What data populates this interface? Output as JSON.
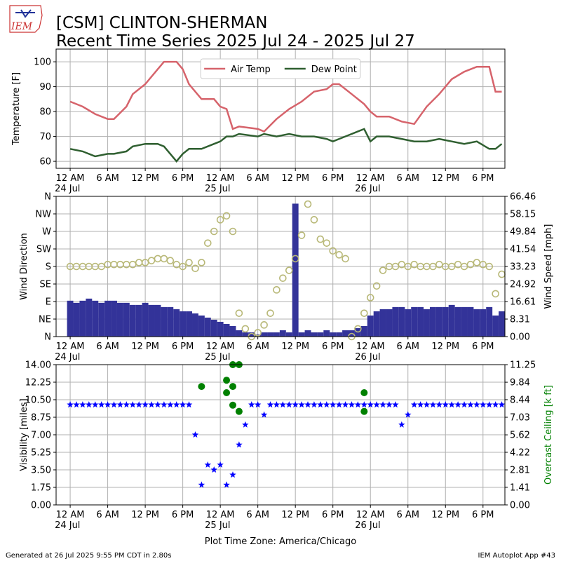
{
  "header": {
    "logo": "IEM",
    "title": "[CSM] CLINTON-SHERMAN",
    "subtitle": "Recent Time Series 2025 Jul 24 - 2025 Jul 27"
  },
  "footer": {
    "left": "Generated at 26 Jul 2025 9:55 PM CDT in 2.80s",
    "right": "IEM Autoplot App #43"
  },
  "chart_data": [
    {
      "type": "line",
      "ylabel": "Temperature [F]",
      "legend": "upper center",
      "grid": true,
      "xlim": [
        "2025-07-23 21:45",
        "2025-07-26 21:30"
      ],
      "xticks": [
        {
          "value": "2025-07-24 00:00",
          "label": "12 AM\n24 Jul"
        },
        {
          "value": "2025-07-24 06:00",
          "label": "6 AM"
        },
        {
          "value": "2025-07-24 12:00",
          "label": "12 PM"
        },
        {
          "value": "2025-07-24 18:00",
          "label": "6 PM"
        },
        {
          "value": "2025-07-25 00:00",
          "label": "12 AM\n25 Jul"
        },
        {
          "value": "2025-07-25 06:00",
          "label": "6 AM"
        },
        {
          "value": "2025-07-25 12:00",
          "label": "12 PM"
        },
        {
          "value": "2025-07-25 18:00",
          "label": "6 PM"
        },
        {
          "value": "2025-07-26 00:00",
          "label": "12 AM\n26 Jul"
        },
        {
          "value": "2025-07-26 06:00",
          "label": "6 AM"
        },
        {
          "value": "2025-07-26 12:00",
          "label": "12 PM"
        },
        {
          "value": "2025-07-26 18:00",
          "label": "6 PM"
        }
      ],
      "ylim": [
        57.2,
        105.1
      ],
      "yticks": [
        60,
        70,
        80,
        90,
        100
      ],
      "x": [
        "2025-07-24 00:00",
        "2025-07-24 02:00",
        "2025-07-24 04:00",
        "2025-07-24 06:00",
        "2025-07-24 07:00",
        "2025-07-24 09:00",
        "2025-07-24 10:00",
        "2025-07-24 12:00",
        "2025-07-24 14:00",
        "2025-07-24 15:00",
        "2025-07-24 17:00",
        "2025-07-24 18:00",
        "2025-07-24 19:00",
        "2025-07-24 21:00",
        "2025-07-24 23:00",
        "2025-07-25 00:00",
        "2025-07-25 01:00",
        "2025-07-25 02:00",
        "2025-07-25 03:00",
        "2025-07-25 06:00",
        "2025-07-25 07:00",
        "2025-07-25 09:00",
        "2025-07-25 11:00",
        "2025-07-25 13:00",
        "2025-07-25 15:00",
        "2025-07-25 17:00",
        "2025-07-25 18:00",
        "2025-07-25 19:00",
        "2025-07-25 21:00",
        "2025-07-25 23:00",
        "2025-07-26 00:00",
        "2025-07-26 01:00",
        "2025-07-26 03:00",
        "2025-07-26 05:00",
        "2025-07-26 07:00",
        "2025-07-26 09:00",
        "2025-07-26 11:00",
        "2025-07-26 13:00",
        "2025-07-26 15:00",
        "2025-07-26 17:00",
        "2025-07-26 19:00",
        "2025-07-26 20:00",
        "2025-07-26 21:00"
      ],
      "series": [
        {
          "name": "Air Temp",
          "color": "#d6636b",
          "mark": "line",
          "values": [
            84,
            82,
            79,
            77,
            77,
            82,
            87,
            91,
            97,
            100,
            100,
            97,
            91,
            85,
            85,
            82,
            81,
            73,
            74,
            73,
            72,
            77,
            81,
            84,
            88,
            89,
            91,
            91,
            87,
            83,
            80,
            78,
            78,
            76,
            75,
            82,
            87,
            93,
            96,
            98,
            98,
            88,
            88
          ]
        },
        {
          "name": "Dew Point",
          "color": "#2f5f30",
          "mark": "line",
          "values": [
            65,
            64,
            62,
            63,
            63,
            64,
            66,
            67,
            67,
            66,
            60,
            63,
            65,
            65,
            67,
            68,
            70,
            70,
            71,
            70,
            71,
            70,
            71,
            70,
            70,
            69,
            68,
            69,
            71,
            73,
            68,
            70,
            70,
            69,
            68,
            68,
            69,
            68,
            67,
            68,
            65,
            65,
            67
          ]
        }
      ]
    },
    {
      "type": "combo",
      "ylabel": "Wind Direction",
      "y2label": "Wind Speed [mph]",
      "grid": true,
      "xlim": [
        "2025-07-23 21:45",
        "2025-07-26 21:30"
      ],
      "xticks": [
        {
          "value": "2025-07-24 00:00",
          "label": "12 AM\n24 Jul"
        },
        {
          "value": "2025-07-24 06:00",
          "label": "6 AM"
        },
        {
          "value": "2025-07-24 12:00",
          "label": "12 PM"
        },
        {
          "value": "2025-07-24 18:00",
          "label": "6 PM"
        },
        {
          "value": "2025-07-25 00:00",
          "label": "12 AM\n25 Jul"
        },
        {
          "value": "2025-07-25 06:00",
          "label": "6 AM"
        },
        {
          "value": "2025-07-25 12:00",
          "label": "12 PM"
        },
        {
          "value": "2025-07-25 18:00",
          "label": "6 PM"
        },
        {
          "value": "2025-07-26 00:00",
          "label": "12 AM\n26 Jul"
        },
        {
          "value": "2025-07-26 06:00",
          "label": "6 AM"
        },
        {
          "value": "2025-07-26 12:00",
          "label": "12 PM"
        },
        {
          "value": "2025-07-26 18:00",
          "label": "6 PM"
        }
      ],
      "ylim": [
        0,
        360
      ],
      "yticks": [
        {
          "value": 0,
          "label": "N"
        },
        {
          "value": 45,
          "label": "NE"
        },
        {
          "value": 90,
          "label": "E"
        },
        {
          "value": 135,
          "label": "SE"
        },
        {
          "value": 180,
          "label": "S"
        },
        {
          "value": 225,
          "label": "SW"
        },
        {
          "value": 270,
          "label": "W"
        },
        {
          "value": 315,
          "label": "NW"
        },
        {
          "value": 360,
          "label": "N"
        }
      ],
      "y2lim": [
        0,
        66.46
      ],
      "y2ticks": [
        {
          "value": 0,
          "label": "0.00"
        },
        8.31,
        16.61,
        24.92,
        33.23,
        41.54,
        49.84,
        58.15,
        66.46
      ],
      "x": [
        "2025-07-24 00:00",
        "2025-07-24 01:00",
        "2025-07-24 02:00",
        "2025-07-24 03:00",
        "2025-07-24 04:00",
        "2025-07-24 05:00",
        "2025-07-24 06:00",
        "2025-07-24 07:00",
        "2025-07-24 08:00",
        "2025-07-24 09:00",
        "2025-07-24 10:00",
        "2025-07-24 11:00",
        "2025-07-24 12:00",
        "2025-07-24 13:00",
        "2025-07-24 14:00",
        "2025-07-24 15:00",
        "2025-07-24 16:00",
        "2025-07-24 17:00",
        "2025-07-24 18:00",
        "2025-07-24 19:00",
        "2025-07-24 20:00",
        "2025-07-24 21:00",
        "2025-07-24 22:00",
        "2025-07-24 23:00",
        "2025-07-25 00:00",
        "2025-07-25 01:00",
        "2025-07-25 02:00",
        "2025-07-25 03:00",
        "2025-07-25 04:00",
        "2025-07-25 05:00",
        "2025-07-25 06:00",
        "2025-07-25 07:00",
        "2025-07-25 08:00",
        "2025-07-25 09:00",
        "2025-07-25 10:00",
        "2025-07-25 11:00",
        "2025-07-25 12:00",
        "2025-07-25 13:00",
        "2025-07-25 14:00",
        "2025-07-25 15:00",
        "2025-07-25 16:00",
        "2025-07-25 17:00",
        "2025-07-25 18:00",
        "2025-07-25 19:00",
        "2025-07-25 20:00",
        "2025-07-25 21:00",
        "2025-07-25 22:00",
        "2025-07-25 23:00",
        "2025-07-26 00:00",
        "2025-07-26 01:00",
        "2025-07-26 02:00",
        "2025-07-26 03:00",
        "2025-07-26 04:00",
        "2025-07-26 05:00",
        "2025-07-26 06:00",
        "2025-07-26 07:00",
        "2025-07-26 08:00",
        "2025-07-26 09:00",
        "2025-07-26 10:00",
        "2025-07-26 11:00",
        "2025-07-26 12:00",
        "2025-07-26 13:00",
        "2025-07-26 14:00",
        "2025-07-26 15:00",
        "2025-07-26 16:00",
        "2025-07-26 17:00",
        "2025-07-26 18:00",
        "2025-07-26 19:00",
        "2025-07-26 20:00",
        "2025-07-26 21:00"
      ],
      "series": [
        {
          "color": "#333399",
          "mark": "bar",
          "axis": "y2",
          "values": [
            17,
            16,
            17,
            18,
            17,
            16,
            17,
            17,
            16,
            16,
            15,
            15,
            16,
            15,
            15,
            14,
            14,
            13,
            12,
            12,
            11,
            10,
            9,
            8,
            7,
            6,
            5,
            3,
            2,
            2,
            1,
            2,
            2,
            2,
            3,
            2,
            63,
            2,
            3,
            2,
            2,
            3,
            2,
            2,
            3,
            3,
            4,
            5,
            10,
            12,
            13,
            13,
            14,
            14,
            13,
            14,
            14,
            13,
            14,
            14,
            14,
            15,
            14,
            14,
            14,
            13,
            13,
            14,
            10,
            12
          ]
        },
        {
          "color": "#b8b877",
          "mark": "circle",
          "values": [
            180,
            180,
            180,
            180,
            180,
            180,
            185,
            185,
            185,
            185,
            185,
            190,
            190,
            195,
            200,
            200,
            195,
            185,
            180,
            190,
            175,
            190,
            240,
            270,
            300,
            310,
            270,
            60,
            20,
            0,
            10,
            30,
            60,
            120,
            150,
            170,
            200,
            260,
            340,
            300,
            250,
            240,
            220,
            210,
            200,
            0,
            20,
            60,
            100,
            130,
            170,
            180,
            180,
            185,
            180,
            185,
            180,
            180,
            180,
            185,
            180,
            180,
            185,
            180,
            185,
            190,
            185,
            180,
            110,
            160
          ]
        }
      ]
    },
    {
      "type": "combo",
      "ylabel": "Visibility [miles]",
      "y2label": "Overcast Ceiling [k ft]",
      "xlabel": "Plot Time Zone: America/Chicago",
      "grid": true,
      "xlim": [
        "2025-07-23 21:45",
        "2025-07-26 21:30"
      ],
      "xticks": [
        {
          "value": "2025-07-24 00:00",
          "label": "12 AM\n24 Jul"
        },
        {
          "value": "2025-07-24 06:00",
          "label": "6 AM"
        },
        {
          "value": "2025-07-24 12:00",
          "label": "12 PM"
        },
        {
          "value": "2025-07-24 18:00",
          "label": "6 PM"
        },
        {
          "value": "2025-07-25 00:00",
          "label": "12 AM\n25 Jul"
        },
        {
          "value": "2025-07-25 06:00",
          "label": "6 AM"
        },
        {
          "value": "2025-07-25 12:00",
          "label": "12 PM"
        },
        {
          "value": "2025-07-25 18:00",
          "label": "6 PM"
        },
        {
          "value": "2025-07-26 00:00",
          "label": "12 AM\n26 Jul"
        },
        {
          "value": "2025-07-26 06:00",
          "label": "6 AM"
        },
        {
          "value": "2025-07-26 12:00",
          "label": "12 PM"
        },
        {
          "value": "2025-07-26 18:00",
          "label": "6 PM"
        }
      ],
      "ylim": [
        0,
        14
      ],
      "yticks": [
        {
          "value": 0,
          "label": "0.00"
        },
        1.75,
        {
          "value": 3.5,
          "label": "3.50"
        },
        5.25,
        {
          "value": 7,
          "label": "7.00"
        },
        8.75,
        {
          "value": 10.5,
          "label": "10.50"
        },
        12.25,
        {
          "value": 14,
          "label": "14.00"
        }
      ],
      "y2lim": [
        0,
        11.25
      ],
      "y2ticks": [
        {
          "value": 0,
          "label": "0.00"
        },
        1.41,
        2.81,
        4.22,
        5.62,
        7.03,
        8.44,
        9.84,
        11.25
      ],
      "x": [
        "2025-07-24 00:00",
        "2025-07-24 01:00",
        "2025-07-24 02:00",
        "2025-07-24 03:00",
        "2025-07-24 04:00",
        "2025-07-24 05:00",
        "2025-07-24 06:00",
        "2025-07-24 07:00",
        "2025-07-24 08:00",
        "2025-07-24 09:00",
        "2025-07-24 10:00",
        "2025-07-24 11:00",
        "2025-07-24 12:00",
        "2025-07-24 13:00",
        "2025-07-24 14:00",
        "2025-07-24 15:00",
        "2025-07-24 16:00",
        "2025-07-24 17:00",
        "2025-07-24 18:00",
        "2025-07-24 19:00",
        "2025-07-24 20:00",
        "2025-07-24 21:00",
        "2025-07-24 22:00",
        "2025-07-24 23:00",
        "2025-07-25 00:00",
        "2025-07-25 01:00",
        "2025-07-25 02:00",
        "2025-07-25 03:00",
        "2025-07-25 04:00",
        "2025-07-25 05:00",
        "2025-07-25 06:00",
        "2025-07-25 07:00",
        "2025-07-25 08:00",
        "2025-07-25 09:00",
        "2025-07-25 10:00",
        "2025-07-25 11:00",
        "2025-07-25 12:00",
        "2025-07-25 13:00",
        "2025-07-25 14:00",
        "2025-07-25 15:00",
        "2025-07-25 16:00",
        "2025-07-25 17:00",
        "2025-07-25 18:00",
        "2025-07-25 19:00",
        "2025-07-25 20:00",
        "2025-07-25 21:00",
        "2025-07-25 22:00",
        "2025-07-25 23:00",
        "2025-07-26 00:00",
        "2025-07-26 01:00",
        "2025-07-26 02:00",
        "2025-07-26 03:00",
        "2025-07-26 04:00",
        "2025-07-26 05:00",
        "2025-07-26 06:00",
        "2025-07-26 07:00",
        "2025-07-26 08:00",
        "2025-07-26 09:00",
        "2025-07-26 10:00",
        "2025-07-26 11:00",
        "2025-07-26 12:00",
        "2025-07-26 13:00",
        "2025-07-26 14:00",
        "2025-07-26 15:00",
        "2025-07-26 16:00",
        "2025-07-26 17:00",
        "2025-07-26 18:00",
        "2025-07-26 19:00",
        "2025-07-26 20:00",
        "2025-07-26 21:00"
      ],
      "series": [
        {
          "color": "#0000ff",
          "mark": "star",
          "values": [
            10,
            10,
            10,
            10,
            10,
            10,
            10,
            10,
            10,
            10,
            10,
            10,
            10,
            10,
            10,
            10,
            10,
            10,
            10,
            10,
            7,
            2,
            4,
            3.5,
            4,
            2,
            3,
            6,
            8,
            10,
            10,
            9,
            10,
            10,
            10,
            10,
            10,
            10,
            10,
            10,
            10,
            10,
            10,
            10,
            10,
            10,
            10,
            10,
            10,
            10,
            10,
            10,
            10,
            8,
            9,
            10,
            10,
            10,
            10,
            10,
            10,
            10,
            10,
            10,
            10,
            10,
            10,
            10,
            10,
            10
          ]
        },
        {
          "color": "#008000",
          "mark": "dot",
          "axis": "y2",
          "x": [
            "2025-07-24 21:00",
            "2025-07-25 01:00",
            "2025-07-25 01:00",
            "2025-07-25 02:00",
            "2025-07-25 02:00",
            "2025-07-25 02:00",
            "2025-07-25 03:00",
            "2025-07-25 03:00",
            "2025-07-25 23:00",
            "2025-07-25 23:00"
          ],
          "values": [
            9.5,
            9.0,
            10.0,
            11.25,
            8.0,
            9.5,
            11.25,
            7.5,
            9.0,
            7.5
          ]
        }
      ]
    }
  ]
}
